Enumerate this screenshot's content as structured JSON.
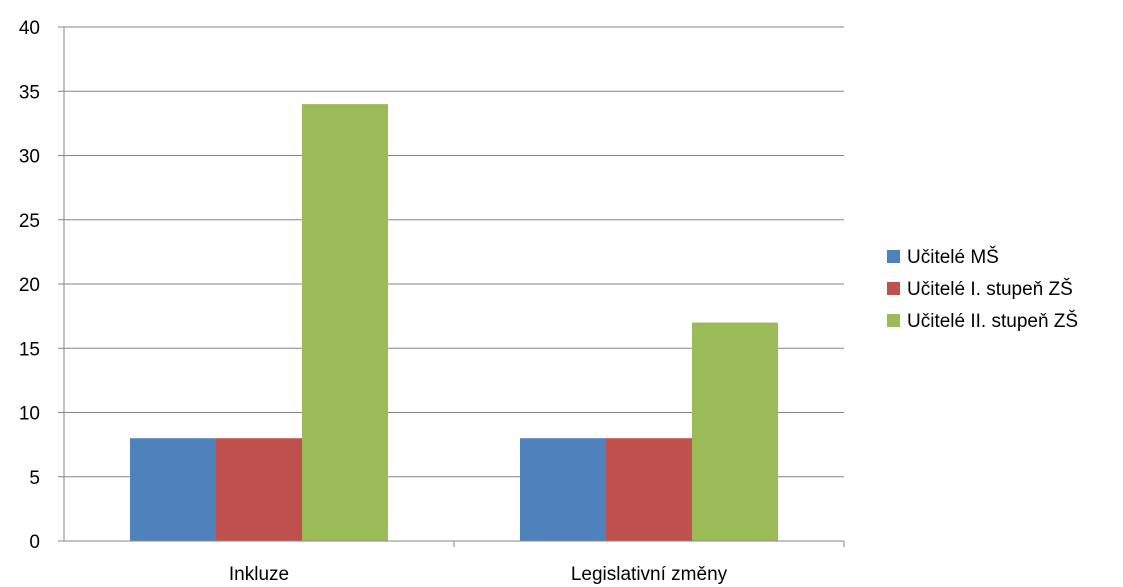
{
  "chart_data": {
    "type": "bar",
    "categories": [
      "Inkluze",
      "Legislativní změny"
    ],
    "series": [
      {
        "name": "Učitelé MŠ",
        "values": [
          8,
          8
        ],
        "color": "#4F81BD"
      },
      {
        "name": "Učitelé I. stupeň ZŠ",
        "values": [
          8,
          8
        ],
        "color": "#C0504D"
      },
      {
        "name": "Učitelé II. stupeň ZŠ",
        "values": [
          34,
          17
        ],
        "color": "#9BBB59"
      }
    ],
    "ylim": [
      0,
      40
    ],
    "yticks": [
      0,
      5,
      10,
      15,
      20,
      25,
      30,
      35,
      40
    ],
    "grid": true,
    "legend": "right"
  }
}
